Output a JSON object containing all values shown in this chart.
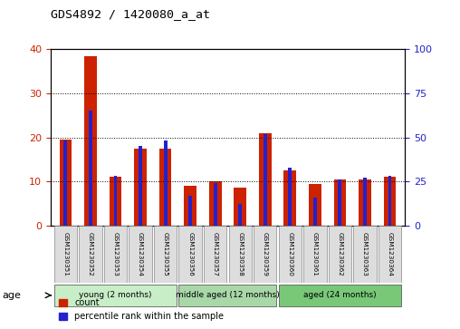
{
  "title": "GDS4892 / 1420080_a_at",
  "samples": [
    "GSM1230351",
    "GSM1230352",
    "GSM1230353",
    "GSM1230354",
    "GSM1230355",
    "GSM1230356",
    "GSM1230357",
    "GSM1230358",
    "GSM1230359",
    "GSM1230360",
    "GSM1230361",
    "GSM1230362",
    "GSM1230363",
    "GSM1230364"
  ],
  "count": [
    19.5,
    38.5,
    11.0,
    17.5,
    17.5,
    9.0,
    10.0,
    8.5,
    21.0,
    12.5,
    9.5,
    10.5,
    10.5,
    11.0
  ],
  "percentile": [
    48,
    65,
    28,
    45,
    48,
    17,
    24,
    12,
    52,
    33,
    16,
    26,
    27,
    28
  ],
  "groups": [
    {
      "label": "young (2 months)",
      "start": 0,
      "end": 5
    },
    {
      "label": "middle aged (12 months)",
      "start": 5,
      "end": 9
    },
    {
      "label": "aged (24 months)",
      "start": 9,
      "end": 14
    }
  ],
  "group_palette": [
    "#C8EEC8",
    "#A8D8A8",
    "#78C878"
  ],
  "ylim_left": [
    0,
    40
  ],
  "ylim_right": [
    0,
    100
  ],
  "bar_color_red": "#CC2200",
  "bar_color_blue": "#2222CC",
  "bar_width": 0.5,
  "age_label": "age",
  "legend_count": "count",
  "legend_percentile": "percentile rank within the sample"
}
